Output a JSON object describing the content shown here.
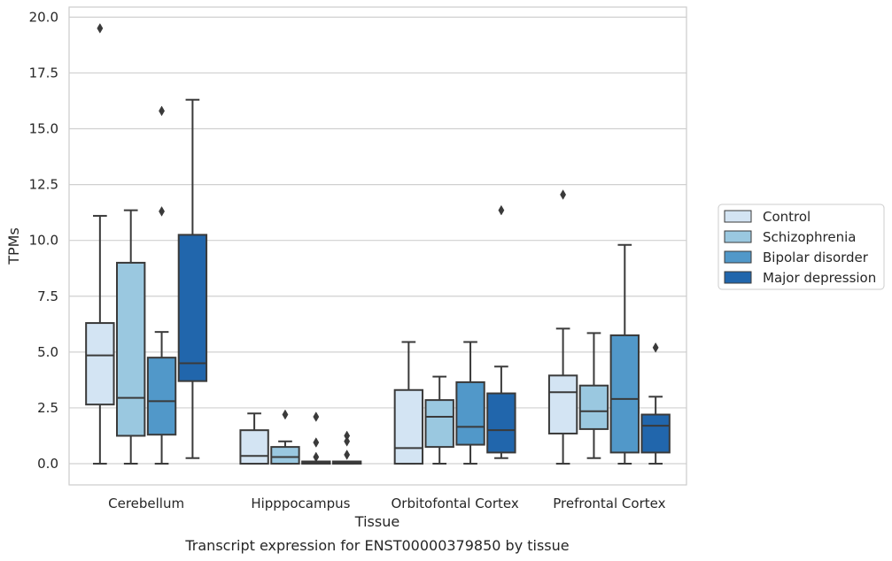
{
  "caption": "Transcript expression for ENST00000379850 by tissue",
  "chart_data": {
    "type": "box",
    "title": "",
    "xlabel": "Tissue",
    "ylabel": "TPMs",
    "ylim": [
      -0.95,
      20.45
    ],
    "yticks": [
      "0.0",
      "2.5",
      "5.0",
      "7.5",
      "10.0",
      "12.5",
      "15.0",
      "17.5",
      "20.0"
    ],
    "ytick_values": [
      0,
      2.5,
      5,
      7.5,
      10,
      12.5,
      15,
      17.5,
      20
    ],
    "grid": "horizontal",
    "legend_position": "right",
    "categories": [
      "Cerebellum",
      "Hipppocampus",
      "Orbitofontal Cortex",
      "Prefrontal Cortex"
    ],
    "series": [
      {
        "name": "Control",
        "color": "#d3e4f3",
        "boxes": [
          {
            "whislo": 0,
            "q1": 2.65,
            "med": 4.85,
            "q3": 6.3,
            "whishi": 11.1,
            "fliers": [
              19.5
            ]
          },
          {
            "whislo": 0,
            "q1": 0,
            "med": 0.35,
            "q3": 1.5,
            "whishi": 2.25,
            "fliers": []
          },
          {
            "whislo": 0,
            "q1": 0,
            "med": 0.7,
            "q3": 3.3,
            "whishi": 5.45,
            "fliers": []
          },
          {
            "whislo": 0,
            "q1": 1.35,
            "med": 3.2,
            "q3": 3.95,
            "whishi": 6.05,
            "fliers": [
              12.05
            ]
          }
        ]
      },
      {
        "name": "Schizophrenia",
        "color": "#9ac8e0",
        "boxes": [
          {
            "whislo": 0,
            "q1": 1.25,
            "med": 2.95,
            "q3": 9.0,
            "whishi": 11.35,
            "fliers": []
          },
          {
            "whislo": 0,
            "q1": 0,
            "med": 0.3,
            "q3": 0.75,
            "whishi": 1.0,
            "fliers": [
              2.2
            ]
          },
          {
            "whislo": 0,
            "q1": 0.75,
            "med": 2.1,
            "q3": 2.85,
            "whishi": 3.9,
            "fliers": []
          },
          {
            "whislo": 0.25,
            "q1": 1.55,
            "med": 2.35,
            "q3": 3.5,
            "whishi": 5.85,
            "fliers": []
          }
        ]
      },
      {
        "name": "Bipolar disorder",
        "color": "#5198c9",
        "boxes": [
          {
            "whislo": 0,
            "q1": 1.3,
            "med": 2.8,
            "q3": 4.75,
            "whishi": 5.9,
            "fliers": [
              11.3,
              15.8
            ]
          },
          {
            "whislo": 0,
            "q1": 0,
            "med": 0.05,
            "q3": 0.1,
            "whishi": 0.1,
            "fliers": [
              0.3,
              0.95,
              2.1
            ]
          },
          {
            "whislo": 0,
            "q1": 0.85,
            "med": 1.65,
            "q3": 3.65,
            "whishi": 5.45,
            "fliers": []
          },
          {
            "whislo": 0,
            "q1": 0.5,
            "med": 2.9,
            "q3": 5.75,
            "whishi": 9.8,
            "fliers": []
          }
        ]
      },
      {
        "name": "Major depression",
        "color": "#2166ac",
        "boxes": [
          {
            "whislo": 0.25,
            "q1": 3.7,
            "med": 4.5,
            "q3": 10.25,
            "whishi": 16.3,
            "fliers": []
          },
          {
            "whislo": 0,
            "q1": 0,
            "med": 0.05,
            "q3": 0.1,
            "whishi": 0.1,
            "fliers": [
              0.4,
              1.0,
              1.25
            ]
          },
          {
            "whislo": 0.25,
            "q1": 0.5,
            "med": 1.5,
            "q3": 3.15,
            "whishi": 4.35,
            "fliers": [
              11.35
            ]
          },
          {
            "whislo": 0,
            "q1": 0.5,
            "med": 1.7,
            "q3": 2.2,
            "whishi": 3.0,
            "fliers": [
              5.2
            ]
          }
        ]
      }
    ]
  }
}
